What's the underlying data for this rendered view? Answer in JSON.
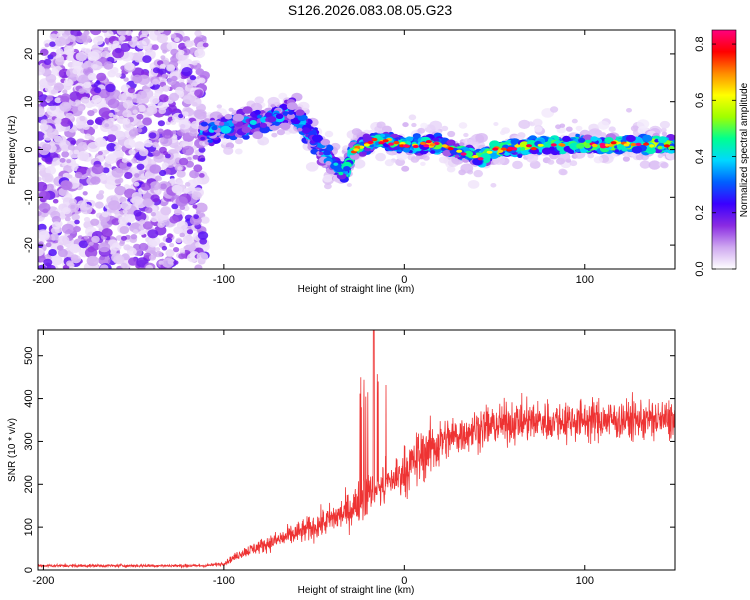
{
  "title": "S126.2026.083.08.05.G23",
  "chart_data": [
    {
      "type": "heatmap",
      "name": "spectrogram",
      "xlabel": "Height of straight line (km)",
      "ylabel": "Frequency (Hz)",
      "xlim": [
        -203,
        150
      ],
      "ylim": [
        -25,
        25
      ],
      "xticks": [
        -200,
        -100,
        0,
        100
      ],
      "yticks": [
        -20,
        -10,
        0,
        10,
        20
      ],
      "colorbar": {
        "label": "Normalized spectral amplitude",
        "range": [
          0.0,
          0.85
        ],
        "ticks": [
          "0.0",
          "0.2",
          "0.4",
          "0.6",
          "0.8"
        ],
        "colors": [
          "#ffffff",
          "#cfa8f0",
          "#8a2be2",
          "#3a00ff",
          "#0060ff",
          "#00d8ff",
          "#00ff90",
          "#a0ff00",
          "#ffff00",
          "#ff8c00",
          "#ff0000",
          "#ff007f"
        ]
      },
      "ridge": [
        {
          "x": -110,
          "f": 4
        },
        {
          "x": -90,
          "f": 5
        },
        {
          "x": -75,
          "f": 6
        },
        {
          "x": -62,
          "f": 8
        },
        {
          "x": -50,
          "f": 2
        },
        {
          "x": -40,
          "f": -3
        },
        {
          "x": -33,
          "f": -5
        },
        {
          "x": -28,
          "f": 0
        },
        {
          "x": -15,
          "f": 2
        },
        {
          "x": 0,
          "f": 1
        },
        {
          "x": 20,
          "f": 1
        },
        {
          "x": 35,
          "f": -1
        },
        {
          "x": 42,
          "f": -2
        },
        {
          "x": 50,
          "f": 0
        },
        {
          "x": 80,
          "f": 1
        },
        {
          "x": 110,
          "f": 1
        },
        {
          "x": 150,
          "f": 1
        }
      ]
    },
    {
      "type": "line",
      "name": "snr",
      "xlabel": "Height of straight line (km)",
      "ylabel": "SNR (10 * v/v)",
      "xlim": [
        -203,
        150
      ],
      "ylim": [
        0,
        560
      ],
      "xticks": [
        -200,
        -100,
        0,
        100
      ],
      "yticks": [
        0,
        100,
        200,
        300,
        400,
        500
      ],
      "color": "#ee3333",
      "trend": [
        {
          "x": -203,
          "y": 10
        },
        {
          "x": -110,
          "y": 10
        },
        {
          "x": -100,
          "y": 15
        },
        {
          "x": -90,
          "y": 40
        },
        {
          "x": -70,
          "y": 70
        },
        {
          "x": -50,
          "y": 100
        },
        {
          "x": -30,
          "y": 140
        },
        {
          "x": -20,
          "y": 180
        },
        {
          "x": -10,
          "y": 200
        },
        {
          "x": 0,
          "y": 230
        },
        {
          "x": 10,
          "y": 270
        },
        {
          "x": 20,
          "y": 300
        },
        {
          "x": 40,
          "y": 330
        },
        {
          "x": 60,
          "y": 345
        },
        {
          "x": 100,
          "y": 350
        },
        {
          "x": 150,
          "y": 350
        }
      ],
      "spike": {
        "x": -17,
        "y": 560
      }
    }
  ]
}
